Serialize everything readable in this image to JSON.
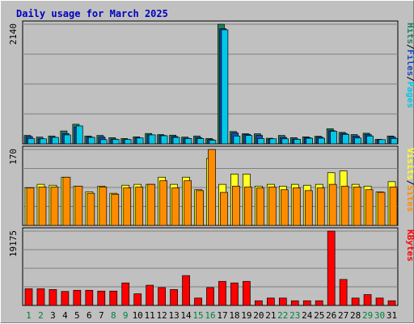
{
  "chart_data": {
    "type": "bar",
    "title": "Daily usage for March 2025",
    "categories": [
      "1",
      "2",
      "3",
      "4",
      "5",
      "6",
      "7",
      "8",
      "9",
      "10",
      "11",
      "12",
      "13",
      "14",
      "15",
      "16",
      "17",
      "18",
      "19",
      "20",
      "21",
      "22",
      "23",
      "24",
      "25",
      "26",
      "27",
      "28",
      "29",
      "30",
      "31"
    ],
    "weekend_days": [
      "1",
      "2",
      "8",
      "9",
      "15",
      "16",
      "22",
      "23",
      "29",
      "30"
    ],
    "colors": {
      "hits": "#208060",
      "files": "#1848b8",
      "pages": "#00c8e8",
      "visits": "#ffff20",
      "sites": "#ff8c00",
      "kbytes": "#ff0000",
      "title": "#0000c0",
      "weekday_label": "#000000",
      "weekend_label": "#008040"
    },
    "panels": [
      {
        "id": "pages-files-hits",
        "ymax_label": "2140",
        "ymax": 2140,
        "legend": [
          "Pages",
          "Files",
          "Hits"
        ],
        "series": [
          {
            "name": "Hits",
            "values": [
              150,
              120,
              140,
              230,
              350,
              140,
              150,
              110,
              95,
              125,
              185,
              165,
              155,
              120,
              140,
              95,
              2140,
              220,
              180,
              180,
              100,
              150,
              110,
              125,
              135,
              270,
              205,
              165,
              190,
              80,
              140
            ]
          },
          {
            "name": "Files",
            "values": [
              130,
              90,
              115,
              185,
              300,
              120,
              120,
              85,
              75,
              105,
              160,
              150,
              130,
              100,
              110,
              75,
              2060,
              195,
              170,
              150,
              80,
              115,
              85,
              110,
              120,
              235,
              185,
              140,
              165,
              70,
              120
            ]
          },
          {
            "name": "Pages",
            "values": [
              95,
              90,
              115,
              160,
              320,
              115,
              75,
              80,
              80,
              105,
              160,
              145,
              115,
              95,
              95,
              65,
              2040,
              140,
              150,
              95,
              90,
              90,
              80,
              100,
              100,
              225,
              170,
              105,
              140,
              75,
              95
            ]
          }
        ]
      },
      {
        "id": "visits-sites",
        "ymax_label": "170",
        "ymax": 170,
        "legend": [
          "Sites",
          "Visits"
        ],
        "series": [
          {
            "name": "Visits",
            "values": [
              84,
              92,
              90,
              108,
              88,
              75,
              88,
              72,
              90,
              92,
              92,
              108,
              92,
              108,
              80,
              150,
              92,
              115,
              115,
              88,
              92,
              88,
              92,
              90,
              92,
              118,
              122,
              92,
              88,
              75,
              98
            ]
          },
          {
            "name": "Sites",
            "values": [
              84,
              86,
              86,
              108,
              88,
              72,
              86,
              70,
              84,
              86,
              92,
              100,
              84,
              100,
              78,
              170,
              74,
              88,
              86,
              84,
              86,
              80,
              84,
              78,
              84,
              92,
              88,
              86,
              80,
              74,
              86
            ]
          }
        ]
      },
      {
        "id": "kbytes",
        "ymax_label": "19175",
        "ymax": 19175,
        "legend": [
          "KBytes"
        ],
        "series": [
          {
            "name": "KBytes",
            "values": [
              4300,
              4300,
              4100,
              3600,
              3900,
              3900,
              3700,
              3700,
              5800,
              3000,
              5200,
              4600,
              4100,
              7700,
              1900,
              4600,
              6200,
              5800,
              6200,
              1200,
              1900,
              1900,
              1200,
              1200,
              1200,
              19175,
              6700,
              1900,
              2800,
              1900,
              1200
            ]
          }
        ]
      }
    ]
  }
}
